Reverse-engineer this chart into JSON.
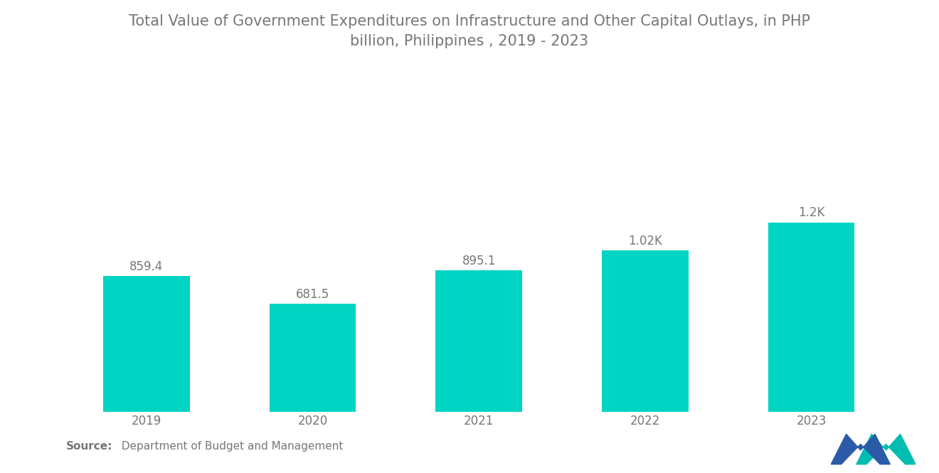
{
  "title": "Total Value of Government Expenditures on Infrastructure and Other Capital Outlays, in PHP\nbillion, Philippines , 2019 - 2023",
  "categories": [
    "2019",
    "2020",
    "2021",
    "2022",
    "2023"
  ],
  "values": [
    859.4,
    681.5,
    895.1,
    1020.0,
    1200.0
  ],
  "labels": [
    "859.4",
    "681.5",
    "895.1",
    "1.02K",
    "1.2K"
  ],
  "bar_color": "#00D4C2",
  "background_color": "#FFFFFF",
  "source_bold": "Source:",
  "source_rest": "  Department of Budget and Management",
  "title_fontsize": 15,
  "label_fontsize": 12,
  "xtick_fontsize": 12,
  "source_fontsize": 11,
  "ylim": [
    0,
    1500
  ],
  "text_color": "#777777",
  "logo_dark": "#2B5BA8",
  "logo_teal": "#00BDB0"
}
